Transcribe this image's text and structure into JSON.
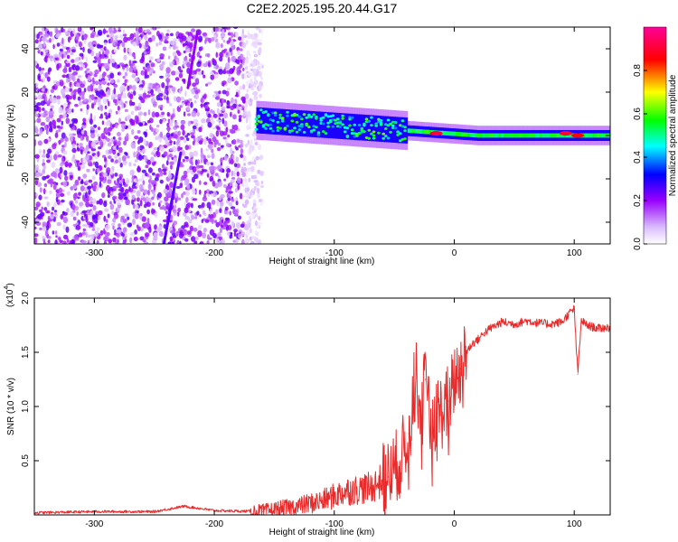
{
  "chart_data": [
    {
      "type": "heatmap",
      "title": "C2E2.2025.195.20.44.G17",
      "xlabel": "Height of straight line (km)",
      "ylabel": "Frequency (Hz)",
      "xlim": [
        -350,
        130
      ],
      "ylim": [
        -50,
        50
      ],
      "xticks": [
        -300,
        -200,
        -100,
        0,
        100
      ],
      "xtick_labels": [
        "-300",
        "-200",
        "-100",
        "0",
        "100"
      ],
      "yticks": [
        -40,
        -20,
        0,
        20,
        40
      ],
      "ytick_labels": [
        "-40",
        "-20",
        "0",
        "20",
        "40"
      ],
      "colorbar": {
        "label": "Normalized spectral amplitude",
        "range": [
          0,
          1
        ],
        "ticks": [
          0,
          0.2,
          0.4,
          0.6,
          0.8
        ],
        "tick_labels": [
          "0.0",
          "0.2",
          "0.4",
          "0.6",
          "0.8"
        ],
        "colors": [
          "#ffffff",
          "#9900ff",
          "#0000ff",
          "#00ffff",
          "#00ff00",
          "#ffff00",
          "#ff0000",
          "#ff0099"
        ]
      },
      "features": [
        {
          "description": "diffuse noise",
          "x_range": [
            -350,
            -160
          ],
          "y_range": [
            -50,
            50
          ],
          "amplitude": 0.15
        },
        {
          "description": "diagonal streak",
          "x_start": -242,
          "y_start": -50,
          "x_end": -228,
          "y_end": -8,
          "amplitude": 0.25
        },
        {
          "description": "diagonal streak",
          "x_start": -222,
          "y_start": 22,
          "x_end": -214,
          "y_end": 48,
          "amplitude": 0.2
        },
        {
          "description": "carrier band",
          "x_range": [
            -165,
            130
          ],
          "center_y_start": 7,
          "center_y_end": 0,
          "amplitude": 0.5
        },
        {
          "description": "peak",
          "x": -15,
          "y": 1,
          "amplitude": 0.9
        },
        {
          "description": "peak",
          "x": 93,
          "y": 1,
          "amplitude": 0.9
        },
        {
          "description": "peak",
          "x": 103,
          "y": 0,
          "amplitude": 0.85
        }
      ]
    },
    {
      "type": "line",
      "xlabel": "Height of straight line (km)",
      "ylabel": "SNR (10 * v/v)",
      "scale_label": "(x10",
      "scale_exponent": "4",
      "xlim": [
        -350,
        130
      ],
      "ylim": [
        0,
        2.0
      ],
      "xticks": [
        -300,
        -200,
        -100,
        0,
        100
      ],
      "xtick_labels": [
        "-300",
        "-200",
        "-100",
        "0",
        "100"
      ],
      "yticks": [
        0.5,
        1.0,
        1.5,
        2.0
      ],
      "ytick_labels": [
        "0.5",
        "1.0",
        "1.5",
        "2.0"
      ],
      "color": "#e82a2a",
      "x": [
        -350,
        -300,
        -250,
        -225,
        -200,
        -160,
        -130,
        -110,
        -90,
        -70,
        -55,
        -45,
        -38,
        -32,
        -28,
        -24,
        -20,
        -15,
        -10,
        -5,
        0,
        5,
        10,
        15,
        20,
        25,
        30,
        40,
        50,
        60,
        70,
        80,
        90,
        95,
        100,
        103,
        106,
        110,
        120,
        130
      ],
      "y": [
        0.02,
        0.03,
        0.03,
        0.08,
        0.04,
        0.03,
        0.08,
        0.13,
        0.22,
        0.25,
        0.35,
        0.5,
        0.75,
        1.3,
        0.95,
        1.25,
        0.8,
        0.95,
        0.95,
        1.05,
        1.25,
        1.35,
        1.5,
        1.58,
        1.62,
        1.68,
        1.72,
        1.78,
        1.76,
        1.79,
        1.77,
        1.76,
        1.78,
        1.85,
        1.9,
        1.3,
        1.8,
        1.75,
        1.72,
        1.73
      ]
    }
  ]
}
